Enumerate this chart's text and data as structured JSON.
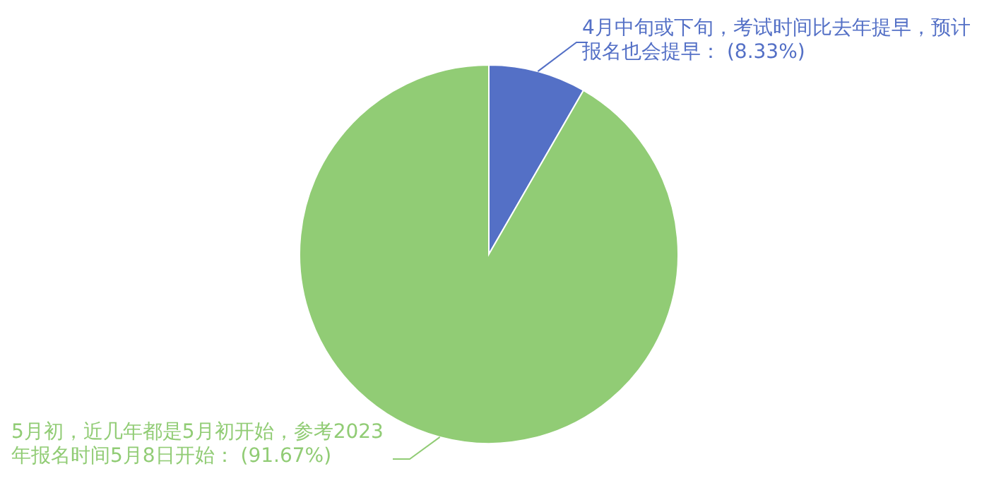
{
  "chart_data": {
    "type": "pie",
    "categories": [
      "4月中旬或下旬，考试时间比去年提早，预计报名也会提早",
      "5月初，近几年都是5月初开始，参考2023年报名时间5月8日开始"
    ],
    "values": [
      8.33,
      91.67
    ],
    "value_labels": [
      "(8.33%)",
      "(91.67%)"
    ],
    "colors": [
      "#5470c6",
      "#91cc75"
    ]
  }
}
